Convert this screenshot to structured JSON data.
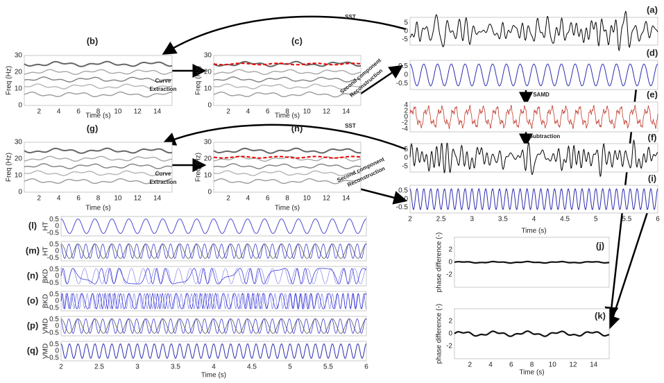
{
  "panels": {
    "a": {
      "label": "(a)",
      "yticks": [
        "5",
        "0",
        "-5"
      ]
    },
    "b": {
      "label": "(b)",
      "yticks": [
        "30",
        "20",
        "10",
        "0"
      ],
      "ylabel": "Freq (Hz)",
      "xticks": [
        "2",
        "4",
        "6",
        "8",
        "10",
        "12",
        "14"
      ],
      "xlabel": "Time (s)"
    },
    "c": {
      "label": "(c)",
      "yticks": [
        "30",
        "20",
        "10",
        "0"
      ],
      "ylabel": "Freq (Hz)",
      "xticks": [
        "2",
        "4",
        "6",
        "8",
        "10",
        "12",
        "14"
      ],
      "xlabel": "Time (s)"
    },
    "d": {
      "label": "(d)",
      "yticks": [
        "0.5",
        "0",
        "-0.5"
      ]
    },
    "e": {
      "label": "(e)",
      "yticks": [
        "4",
        "2",
        "0",
        "-2",
        "-4"
      ]
    },
    "f": {
      "label": "(f)",
      "yticks": [
        "5",
        "0",
        "-5"
      ]
    },
    "g": {
      "label": "(g)",
      "yticks": [
        "30",
        "20",
        "10",
        "0"
      ],
      "ylabel": "Freq (Hz)",
      "xticks": [
        "2",
        "4",
        "6",
        "8",
        "10",
        "12",
        "14"
      ],
      "xlabel": "Time (s)"
    },
    "h": {
      "label": "(h)",
      "yticks": [
        "30",
        "20",
        "10",
        "0"
      ],
      "ylabel": "Freq (Hz)",
      "xticks": [
        "2",
        "4",
        "6",
        "8",
        "10",
        "12",
        "14"
      ],
      "xlabel": "Time (s)"
    },
    "i": {
      "label": "(i)",
      "yticks": [
        "0.5",
        "0",
        "-0.5"
      ],
      "xticks": [
        "2",
        "2.5",
        "3",
        "3.5",
        "4",
        "4.5",
        "5",
        "5.5",
        "6"
      ],
      "xlabel": "Time (s)"
    },
    "j": {
      "label": "(j)",
      "yticks": [
        "2",
        "0",
        "-2"
      ],
      "ylabel": "phase difference (-)"
    },
    "k": {
      "label": "(k)",
      "yticks": [
        "2",
        "0",
        "-2"
      ],
      "ylabel": "phase difference (-)",
      "xticks": [
        "2",
        "4",
        "6",
        "8",
        "10",
        "12",
        "14"
      ],
      "xlabel": "Time (s)"
    },
    "l": {
      "label": "(l)",
      "ylabel": "HT",
      "yticks": [
        "0.5",
        "0",
        "-0.5"
      ]
    },
    "m": {
      "label": "(m)",
      "ylabel": "HT",
      "yticks": [
        "0.5",
        "0",
        "-0.5"
      ]
    },
    "n": {
      "label": "(n)",
      "ylabel": "BKD",
      "yticks": [
        "0.5",
        "0",
        "-0.5"
      ]
    },
    "o": {
      "label": "(o)",
      "ylabel": "BKD",
      "yticks": [
        "0.5",
        "0",
        "-0.5"
      ]
    },
    "p": {
      "label": "(p)",
      "ylabel": "VMD",
      "yticks": [
        "0.5",
        "0",
        "-0.5"
      ]
    },
    "q": {
      "label": "(q)",
      "ylabel": "VMD",
      "yticks": [
        "0.5",
        "0",
        "-0.5"
      ],
      "xticks": [
        "2",
        "2.5",
        "3",
        "3.5",
        "4",
        "4.5",
        "5",
        "5.5",
        "6"
      ],
      "xlabel": "Time (s)"
    }
  },
  "annotations": [
    "SST",
    "SST",
    "Curve",
    "Extraction",
    "Curve",
    "Extraction",
    "Second component",
    "Reconstruction",
    "Second component",
    "Reconstruction",
    "SAMD",
    "Subtraction"
  ]
}
